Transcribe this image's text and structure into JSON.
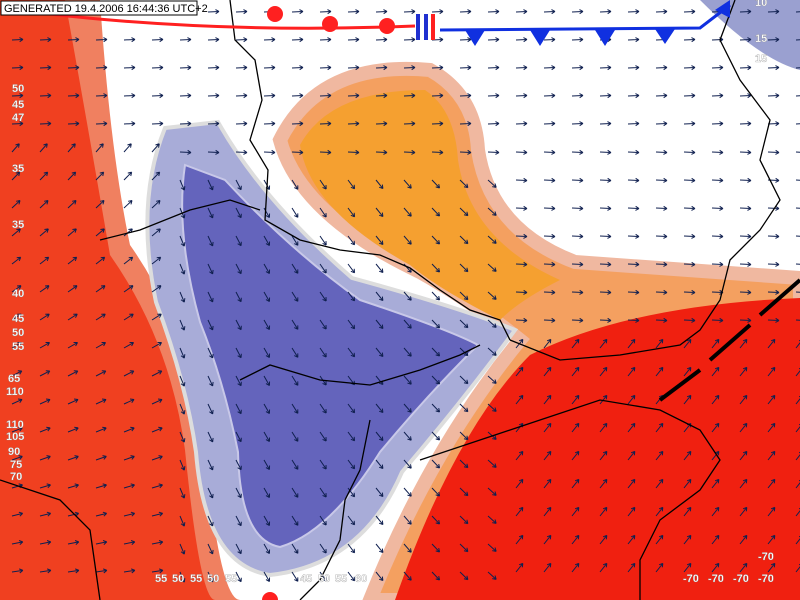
{
  "header": {
    "generated": "GENERATED 19.4.2006 16:44:36 UTC+2"
  },
  "contour_labels": [
    "50",
    "45",
    "47",
    "35",
    "35",
    "40",
    "45",
    "50",
    "55",
    "65",
    "110",
    "110",
    "105",
    "90",
    "75",
    "70",
    "10",
    "15",
    "15",
    "-70",
    "-70",
    "-70",
    "-70",
    "-70",
    "55",
    "50",
    "55",
    "50",
    "55",
    "45",
    "50",
    "55",
    "60"
  ]
}
